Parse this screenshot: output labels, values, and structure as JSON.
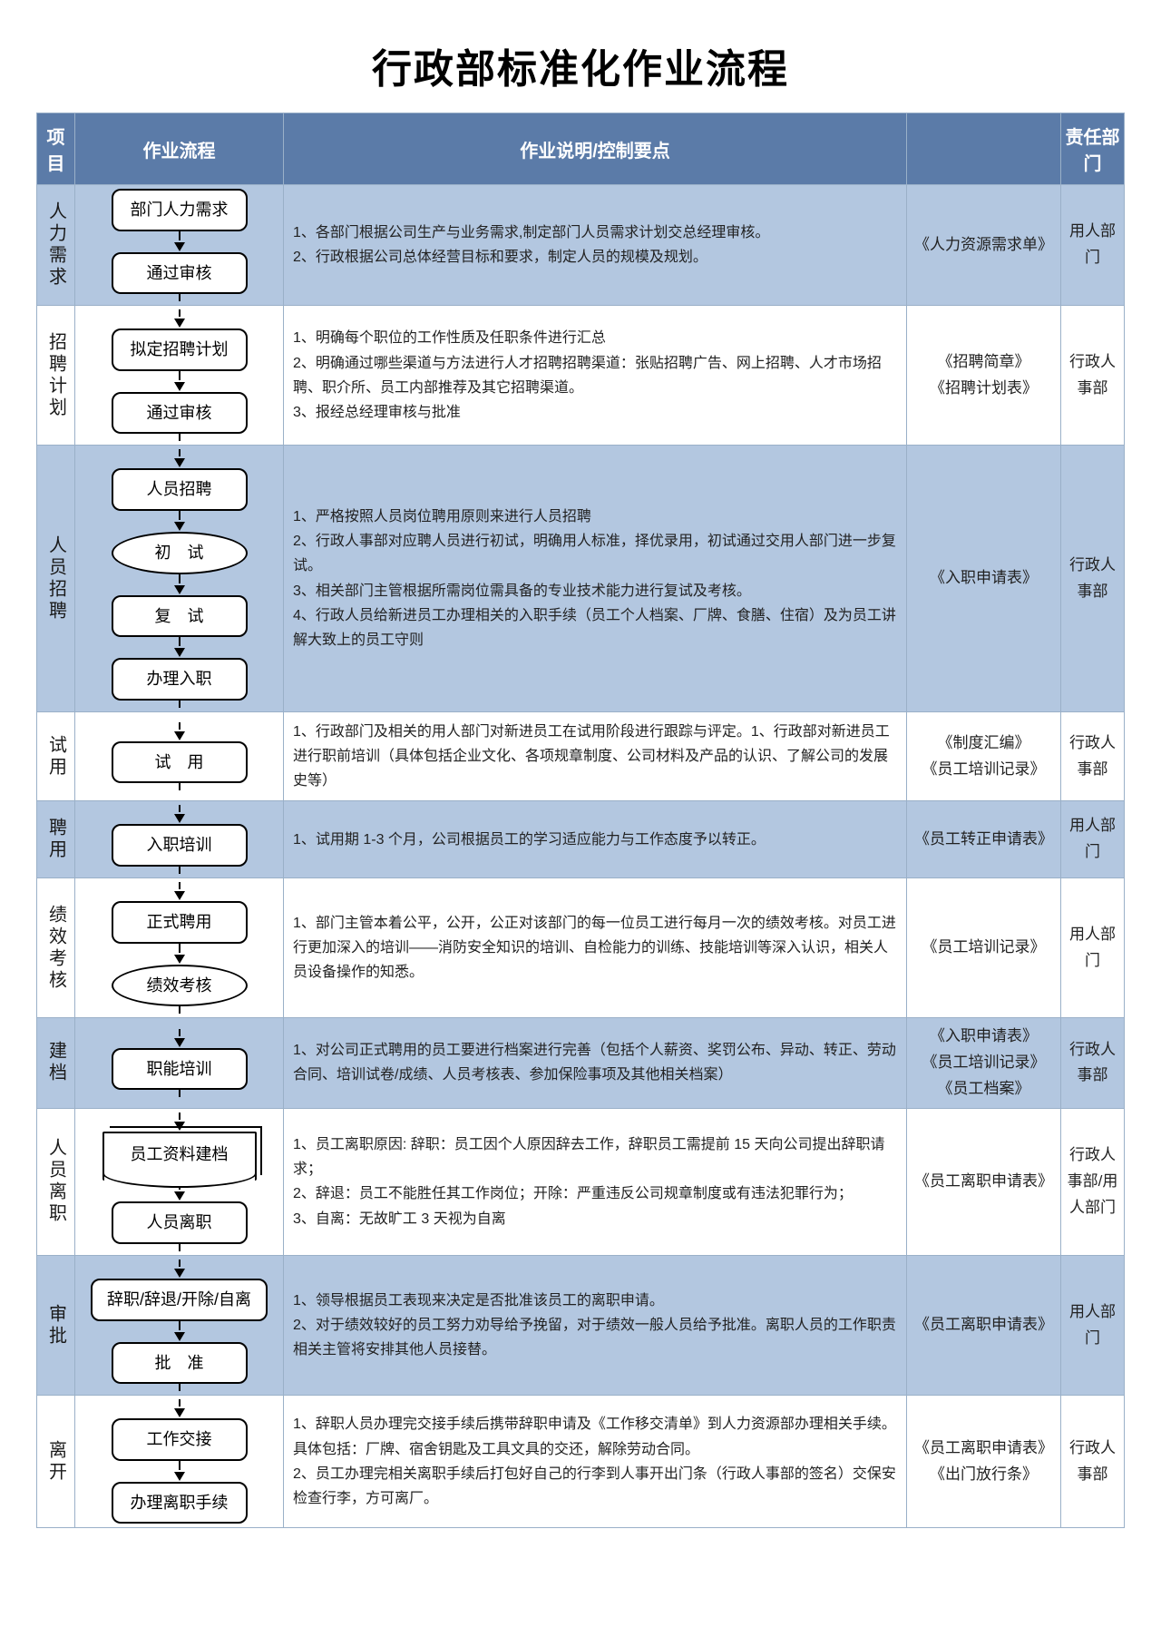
{
  "title": "行政部标准化作业流程",
  "headers": {
    "project": "项目",
    "flow": "作业流程",
    "desc": "作业说明/控制要点",
    "doc": "",
    "dept": "责任部门"
  },
  "colors": {
    "header_bg": "#5b7ba8",
    "header_fg": "#ffffff",
    "band_blue": "#b3c7e0",
    "band_white": "#ffffff",
    "border": "#9ab0c8",
    "text": "#1a1a1a"
  },
  "rows": [
    {
      "project": "人力需求",
      "bg": "blue",
      "flow_nodes": [
        {
          "shape": "rect",
          "label": "部门人力需求"
        },
        {
          "shape": "rect",
          "label": "通过审核"
        }
      ],
      "desc": "1、各部门根据公司生产与业务需求,制定部门人员需求计划交总经理审核。\n2、行政根据公司总体经营目标和要求，制定人员的规模及规划。",
      "doc": "《人力资源需求单》",
      "dept": "用人部门"
    },
    {
      "project": "招聘计划",
      "bg": "white",
      "flow_nodes": [
        {
          "shape": "rect",
          "label": "拟定招聘计划"
        },
        {
          "shape": "rect",
          "label": "通过审核"
        }
      ],
      "desc": "1、明确每个职位的工作性质及任职条件进行汇总\n2、明确通过哪些渠道与方法进行人才招聘招聘渠道：张贴招聘广告、网上招聘、人才市场招聘、职介所、员工内部推荐及其它招聘渠道。\n3、报经总经理审核与批准",
      "doc": "《招聘简章》\n《招聘计划表》",
      "dept": "行政人事部"
    },
    {
      "project": "人员招聘",
      "bg": "blue",
      "flow_nodes": [
        {
          "shape": "rect",
          "label": "人员招聘"
        },
        {
          "shape": "ellipse",
          "label": "初　试"
        },
        {
          "shape": "rect",
          "label": "复　试"
        },
        {
          "shape": "rect",
          "label": "办理入职"
        }
      ],
      "desc": "1、严格按照人员岗位聘用原则来进行人员招聘\n2、行政人事部对应聘人员进行初试，明确用人标准，择优录用，初试通过交用人部门进一步复试。\n3、相关部门主管根据所需岗位需具备的专业技术能力进行复试及考核。\n4、行政人员给新进员工办理相关的入职手续（员工个人档案、厂牌、食膳、住宿）及为员工讲解大致上的员工守则",
      "doc": "《入职申请表》",
      "dept": "行政人事部"
    },
    {
      "project": "试用",
      "bg": "white",
      "flow_nodes": [
        {
          "shape": "rect",
          "label": "试　用"
        }
      ],
      "desc": "1、行政部门及相关的用人部门对新进员工在试用阶段进行跟踪与评定。1、行政部对新进员工进行职前培训（具体包括企业文化、各项规章制度、公司材料及产品的认识、了解公司的发展史等）",
      "doc": "《制度汇编》\n《员工培训记录》",
      "dept": "行政人事部"
    },
    {
      "project": "聘用",
      "bg": "blue",
      "flow_nodes": [
        {
          "shape": "rect",
          "label": "入职培训"
        }
      ],
      "desc": "1、试用期 1-3 个月，公司根据员工的学习适应能力与工作态度予以转正。",
      "doc": "《员工转正申请表》",
      "dept": "用人部门"
    },
    {
      "project": "绩效考核",
      "bg": "white",
      "flow_nodes": [
        {
          "shape": "rect",
          "label": "正式聘用"
        },
        {
          "shape": "ellipse",
          "label": "绩效考核"
        }
      ],
      "desc": "1、部门主管本着公平，公开，公正对该部门的每一位员工进行每月一次的绩效考核。对员工进行更加深入的培训——消防安全知识的培训、自检能力的训练、技能培训等深入认识，相关人员设备操作的知悉。",
      "doc": "《员工培训记录》",
      "dept": "用人部门"
    },
    {
      "project": "建档",
      "bg": "blue",
      "flow_nodes": [
        {
          "shape": "rect",
          "label": "职能培训"
        }
      ],
      "desc": "1、对公司正式聘用的员工要进行档案进行完善（包括个人薪资、奖罚公布、异动、转正、劳动合同、培训试卷/成绩、人员考核表、参加保险事项及其他相关档案）",
      "doc": "《入职申请表》\n《员工培训记录》\n《员工档案》",
      "dept": "行政人事部"
    },
    {
      "project": "人员离职",
      "bg": "white",
      "flow_nodes": [
        {
          "shape": "doc",
          "label": "员工资料建档"
        },
        {
          "shape": "rect",
          "label": "人员离职"
        }
      ],
      "desc": "1、员工离职原因: 辞职：员工因个人原因辞去工作，辞职员工需提前 15 天向公司提出辞职请求；\n2、辞退：员工不能胜任其工作岗位；开除：严重违反公司规章制度或有违法犯罪行为；\n3、自离：无故旷工 3 天视为自离",
      "doc": "《员工离职申请表》",
      "dept": "行政人事部/用人部门"
    },
    {
      "project": "审批",
      "bg": "blue",
      "flow_nodes": [
        {
          "shape": "rect",
          "label": "辞职/辞退/开除/自离"
        },
        {
          "shape": "rect",
          "label": "批　准"
        }
      ],
      "desc": "1、领导根据员工表现来决定是否批准该员工的离职申请。\n2、对于绩效较好的员工努力劝导给予挽留，对于绩效一般人员给予批准。离职人员的工作职责相关主管将安排其他人员接替。",
      "doc": "《员工离职申请表》",
      "dept": "用人部门"
    },
    {
      "project": "离开",
      "bg": "white",
      "flow_nodes": [
        {
          "shape": "rect",
          "label": "工作交接"
        },
        {
          "shape": "rect",
          "label": "办理离职手续"
        }
      ],
      "desc": "1、辞职人员办理完交接手续后携带辞职申请及《工作移交清单》到人力资源部办理相关手续。具体包括：厂牌、宿舍钥匙及工具文具的交还，解除劳动合同。\n2、员工办理完相关离职手续后打包好自己的行李到人事开出门条（行政人事部的签名）交保安检查行李，方可离厂。",
      "doc": "《员工离职申请表》\n《出门放行条》",
      "dept": "行政人事部"
    }
  ]
}
